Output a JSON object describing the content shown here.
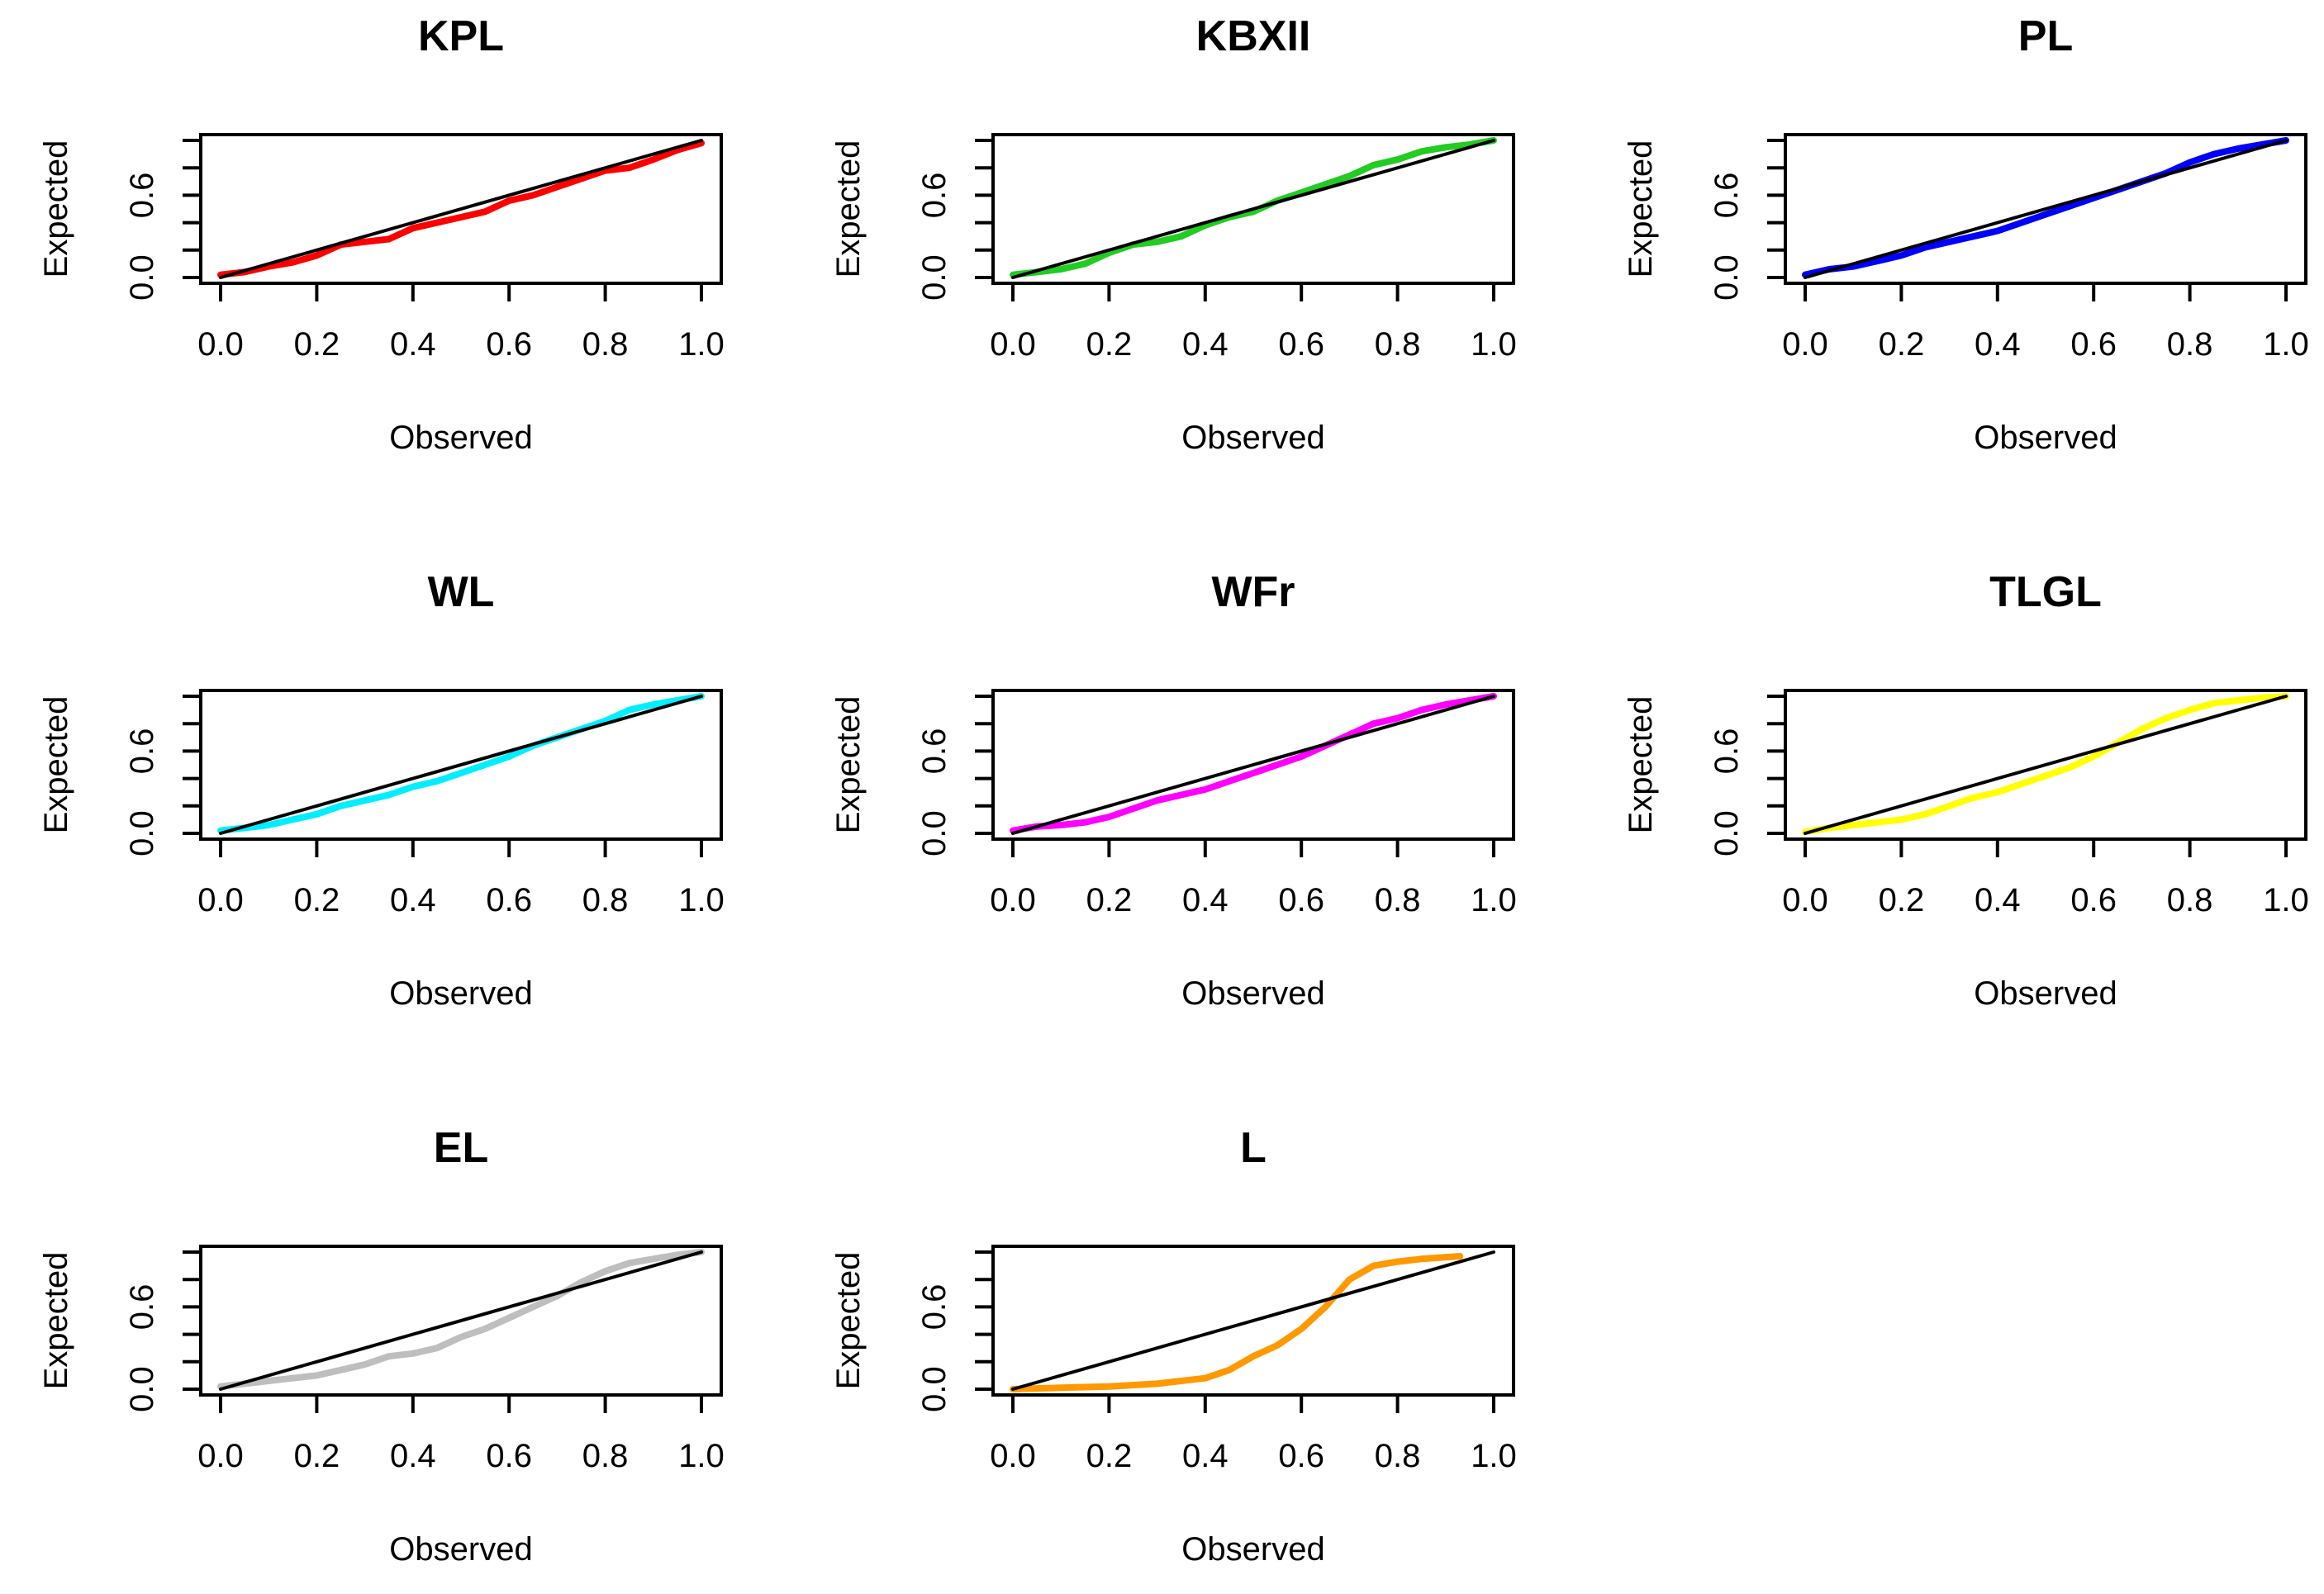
{
  "chart_data": [
    {
      "type": "line",
      "title": "KPL",
      "xlabel": "Observed",
      "ylabel": "Expected",
      "xlim": [
        0,
        1
      ],
      "ylim": [
        0,
        1
      ],
      "xticks": [
        "0.0",
        "0.2",
        "0.4",
        "0.6",
        "0.8",
        "1.0"
      ],
      "yticks": [
        "0.0",
        "0.6"
      ],
      "series": [
        {
          "name": "KPL",
          "color": "#ff0000",
          "x": [
            0,
            0.05,
            0.1,
            0.15,
            0.2,
            0.25,
            0.3,
            0.35,
            0.4,
            0.45,
            0.5,
            0.55,
            0.6,
            0.65,
            0.7,
            0.75,
            0.8,
            0.85,
            0.9,
            0.95,
            1.0
          ],
          "y": [
            0.02,
            0.04,
            0.08,
            0.11,
            0.16,
            0.24,
            0.26,
            0.28,
            0.36,
            0.4,
            0.44,
            0.48,
            0.56,
            0.6,
            0.66,
            0.72,
            0.78,
            0.8,
            0.86,
            0.93,
            0.98
          ]
        },
        {
          "name": "reference",
          "color": "#000000",
          "x": [
            0,
            1
          ],
          "y": [
            0,
            1
          ]
        }
      ]
    },
    {
      "type": "line",
      "title": "KBXII",
      "xlabel": "Observed",
      "ylabel": "Expected",
      "xlim": [
        0,
        1
      ],
      "ylim": [
        0,
        1
      ],
      "xticks": [
        "0.0",
        "0.2",
        "0.4",
        "0.6",
        "0.8",
        "1.0"
      ],
      "yticks": [
        "0.0",
        "0.6"
      ],
      "series": [
        {
          "name": "KBXII",
          "color": "#22cc22",
          "x": [
            0,
            0.05,
            0.1,
            0.15,
            0.2,
            0.25,
            0.3,
            0.35,
            0.4,
            0.45,
            0.5,
            0.55,
            0.6,
            0.65,
            0.7,
            0.75,
            0.8,
            0.85,
            0.9,
            0.95,
            1.0
          ],
          "y": [
            0.02,
            0.04,
            0.06,
            0.1,
            0.18,
            0.24,
            0.26,
            0.3,
            0.38,
            0.44,
            0.48,
            0.56,
            0.62,
            0.68,
            0.74,
            0.82,
            0.86,
            0.92,
            0.95,
            0.97,
            1.0
          ]
        },
        {
          "name": "reference",
          "color": "#000000",
          "x": [
            0,
            1
          ],
          "y": [
            0,
            1
          ]
        }
      ]
    },
    {
      "type": "line",
      "title": "PL",
      "xlabel": "Observed",
      "ylabel": "Expected",
      "xlim": [
        0,
        1
      ],
      "ylim": [
        0,
        1
      ],
      "xticks": [
        "0.0",
        "0.2",
        "0.4",
        "0.6",
        "0.8",
        "1.0"
      ],
      "yticks": [
        "0.0",
        "0.6"
      ],
      "series": [
        {
          "name": "PL",
          "color": "#0000ff",
          "x": [
            0,
            0.05,
            0.1,
            0.15,
            0.2,
            0.25,
            0.3,
            0.35,
            0.4,
            0.45,
            0.5,
            0.55,
            0.6,
            0.65,
            0.7,
            0.75,
            0.8,
            0.85,
            0.9,
            0.95,
            1.0
          ],
          "y": [
            0.02,
            0.06,
            0.08,
            0.12,
            0.16,
            0.22,
            0.26,
            0.3,
            0.34,
            0.4,
            0.46,
            0.52,
            0.58,
            0.64,
            0.7,
            0.76,
            0.84,
            0.9,
            0.94,
            0.97,
            1.0
          ]
        },
        {
          "name": "reference",
          "color": "#000000",
          "x": [
            0,
            1
          ],
          "y": [
            0,
            1
          ]
        }
      ]
    },
    {
      "type": "line",
      "title": "WL",
      "xlabel": "Observed",
      "ylabel": "Expected",
      "xlim": [
        0,
        1
      ],
      "ylim": [
        0,
        1
      ],
      "xticks": [
        "0.0",
        "0.2",
        "0.4",
        "0.6",
        "0.8",
        "1.0"
      ],
      "yticks": [
        "0.0",
        "0.6"
      ],
      "series": [
        {
          "name": "WL",
          "color": "#00eeff",
          "x": [
            0,
            0.05,
            0.1,
            0.15,
            0.2,
            0.25,
            0.3,
            0.35,
            0.4,
            0.45,
            0.5,
            0.55,
            0.6,
            0.65,
            0.7,
            0.75,
            0.8,
            0.85,
            0.9,
            0.95,
            1.0
          ],
          "y": [
            0.02,
            0.04,
            0.06,
            0.1,
            0.14,
            0.2,
            0.24,
            0.28,
            0.34,
            0.38,
            0.44,
            0.5,
            0.56,
            0.64,
            0.7,
            0.76,
            0.82,
            0.9,
            0.94,
            0.97,
            1.0
          ]
        },
        {
          "name": "reference",
          "color": "#000000",
          "x": [
            0,
            1
          ],
          "y": [
            0,
            1
          ]
        }
      ]
    },
    {
      "type": "line",
      "title": "WFr",
      "xlabel": "Observed",
      "ylabel": "Expected",
      "xlim": [
        0,
        1
      ],
      "ylim": [
        0,
        1
      ],
      "xticks": [
        "0.0",
        "0.2",
        "0.4",
        "0.6",
        "0.8",
        "1.0"
      ],
      "yticks": [
        "0.0",
        "0.6"
      ],
      "series": [
        {
          "name": "WFr",
          "color": "#ff00ff",
          "x": [
            0,
            0.05,
            0.1,
            0.15,
            0.2,
            0.25,
            0.3,
            0.35,
            0.4,
            0.45,
            0.5,
            0.55,
            0.6,
            0.65,
            0.7,
            0.75,
            0.8,
            0.85,
            0.9,
            0.95,
            1.0
          ],
          "y": [
            0.02,
            0.05,
            0.06,
            0.08,
            0.12,
            0.18,
            0.24,
            0.28,
            0.32,
            0.38,
            0.44,
            0.5,
            0.56,
            0.64,
            0.72,
            0.8,
            0.84,
            0.9,
            0.94,
            0.97,
            1.0
          ]
        },
        {
          "name": "reference",
          "color": "#000000",
          "x": [
            0,
            1
          ],
          "y": [
            0,
            1
          ]
        }
      ]
    },
    {
      "type": "line",
      "title": "TLGL",
      "xlabel": "Observed",
      "ylabel": "Expected",
      "xlim": [
        0,
        1
      ],
      "ylim": [
        0,
        1
      ],
      "xticks": [
        "0.0",
        "0.2",
        "0.4",
        "0.6",
        "0.8",
        "1.0"
      ],
      "yticks": [
        "0.0",
        "0.6"
      ],
      "series": [
        {
          "name": "TLGL",
          "color": "#ffff00",
          "x": [
            0,
            0.05,
            0.1,
            0.15,
            0.2,
            0.25,
            0.3,
            0.35,
            0.4,
            0.45,
            0.5,
            0.55,
            0.6,
            0.65,
            0.7,
            0.75,
            0.8,
            0.85,
            0.9,
            0.95,
            1.0
          ],
          "y": [
            0.01,
            0.04,
            0.06,
            0.08,
            0.1,
            0.14,
            0.2,
            0.26,
            0.3,
            0.36,
            0.42,
            0.48,
            0.56,
            0.66,
            0.76,
            0.84,
            0.9,
            0.95,
            0.97,
            0.99,
            1.0
          ]
        },
        {
          "name": "reference",
          "color": "#000000",
          "x": [
            0,
            1
          ],
          "y": [
            0,
            1
          ]
        }
      ]
    },
    {
      "type": "line",
      "title": "EL",
      "xlabel": "Observed",
      "ylabel": "Expected",
      "xlim": [
        0,
        1
      ],
      "ylim": [
        0,
        1
      ],
      "xticks": [
        "0.0",
        "0.2",
        "0.4",
        "0.6",
        "0.8",
        "1.0"
      ],
      "yticks": [
        "0.0",
        "0.6"
      ],
      "series": [
        {
          "name": "EL",
          "color": "#bebebe",
          "x": [
            0,
            0.05,
            0.1,
            0.15,
            0.2,
            0.25,
            0.3,
            0.35,
            0.4,
            0.45,
            0.5,
            0.55,
            0.6,
            0.65,
            0.7,
            0.75,
            0.8,
            0.85,
            0.9,
            0.95,
            1.0
          ],
          "y": [
            0.02,
            0.04,
            0.06,
            0.08,
            0.1,
            0.14,
            0.18,
            0.24,
            0.26,
            0.3,
            0.38,
            0.44,
            0.52,
            0.6,
            0.68,
            0.78,
            0.86,
            0.92,
            0.95,
            0.98,
            1.0
          ]
        },
        {
          "name": "reference",
          "color": "#000000",
          "x": [
            0,
            1
          ],
          "y": [
            0,
            1
          ]
        }
      ]
    },
    {
      "type": "line",
      "title": "L",
      "xlabel": "Observed",
      "ylabel": "Expected",
      "xlim": [
        0,
        1
      ],
      "ylim": [
        0,
        1
      ],
      "xticks": [
        "0.0",
        "0.2",
        "0.4",
        "0.6",
        "0.8",
        "1.0"
      ],
      "yticks": [
        "0.0",
        "0.6"
      ],
      "series": [
        {
          "name": "L",
          "color": "#ff9900",
          "x": [
            0,
            0.1,
            0.2,
            0.3,
            0.4,
            0.45,
            0.5,
            0.55,
            0.6,
            0.65,
            0.68,
            0.7,
            0.75,
            0.8,
            0.85,
            0.93
          ],
          "y": [
            0.0,
            0.01,
            0.02,
            0.04,
            0.08,
            0.14,
            0.24,
            0.32,
            0.44,
            0.6,
            0.72,
            0.8,
            0.9,
            0.93,
            0.95,
            0.97
          ]
        },
        {
          "name": "reference",
          "color": "#000000",
          "x": [
            0,
            1
          ],
          "y": [
            0,
            1
          ]
        }
      ]
    }
  ]
}
